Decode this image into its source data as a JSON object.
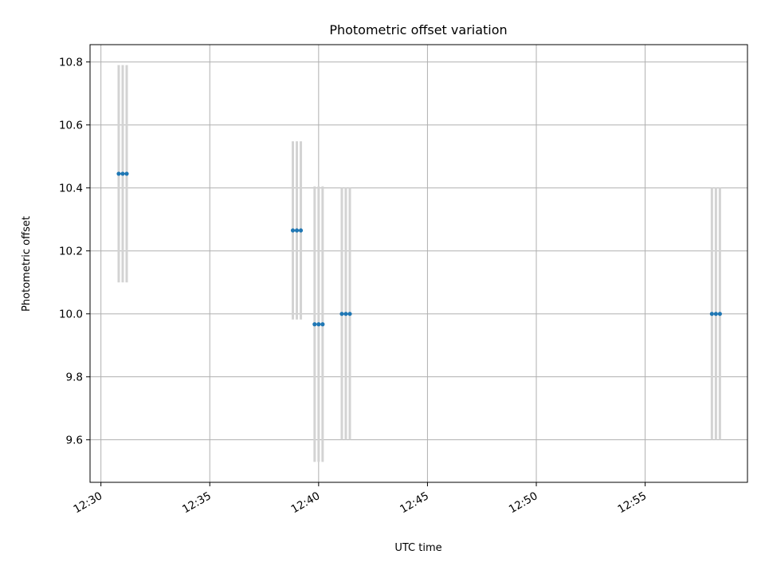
{
  "chart_data": {
    "type": "scatter",
    "title": "Photometric offset variation",
    "xlabel": "UTC time",
    "ylabel": "Photometric offset",
    "x_ticks": [
      "12:30",
      "12:35",
      "12:40",
      "12:45",
      "12:50",
      "12:55"
    ],
    "y_ticks": [
      "9.6",
      "9.8",
      "10.0",
      "10.2",
      "10.4",
      "10.6",
      "10.8"
    ],
    "xlim": [
      "12:29.5",
      "12:59.7"
    ],
    "ylim": [
      9.465,
      10.855
    ],
    "grid": true,
    "colors": {
      "marker": "#1f77b4",
      "errorbar": "#d3d3d3",
      "grid": "#b0b0b0"
    },
    "groups": [
      {
        "times": [
          "12:30:49",
          "12:31:00",
          "12:31:11"
        ],
        "y": 10.445,
        "err_low": 10.1,
        "err_high": 10.79
      },
      {
        "times": [
          "12:38:49",
          "12:39:00",
          "12:39:11"
        ],
        "y": 10.265,
        "err_low": 9.982,
        "err_high": 10.548
      },
      {
        "times": [
          "12:39:49",
          "12:40:00",
          "12:40:11"
        ],
        "y": 9.967,
        "err_low": 9.53,
        "err_high": 10.405
      },
      {
        "times": [
          "12:41:04",
          "12:41:15",
          "12:41:26"
        ],
        "y": 10.0,
        "err_low": 9.6,
        "err_high": 10.4
      },
      {
        "times": [
          "12:58:04",
          "12:58:15",
          "12:58:26"
        ],
        "y": 10.0,
        "err_low": 9.6,
        "err_high": 10.4
      }
    ]
  }
}
